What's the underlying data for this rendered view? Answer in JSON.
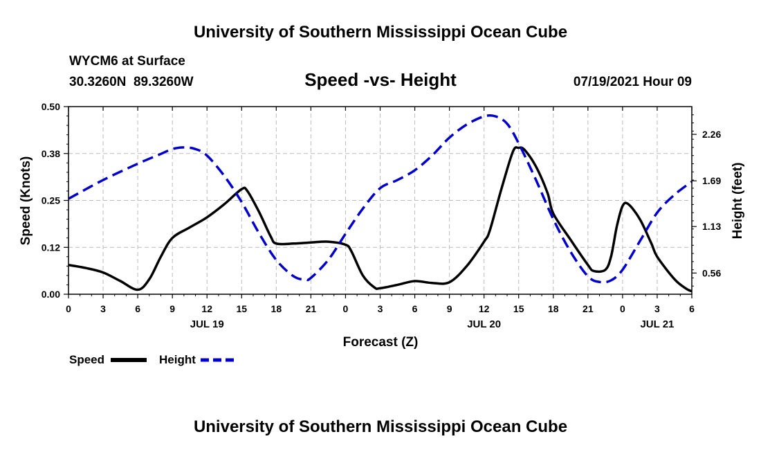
{
  "header": {
    "title": "University of Southern Mississippi Ocean Cube",
    "station": "WYCM6 at Surface",
    "coords": "30.3260N  89.3260W",
    "chart_title": "Speed -vs- Height",
    "datetime": "07/19/2021 Hour 09"
  },
  "footer": {
    "title": "University of Southern Mississippi Ocean Cube"
  },
  "colors": {
    "speed": "#000000",
    "height": "#0000cc",
    "grid": "#bbbbbb"
  },
  "chart_data": {
    "type": "line",
    "title": "Speed -vs- Height",
    "xlabel": "Forecast (Z)",
    "ylabel": "Speed (Knots)",
    "y2label": "Height (feet)",
    "xlim": [
      0,
      54
    ],
    "ylim": [
      0,
      0.5
    ],
    "y2lim": [
      0.3,
      2.6
    ],
    "x_ticks": [
      0,
      3,
      6,
      9,
      12,
      15,
      18,
      21,
      24,
      27,
      30,
      33,
      36,
      39,
      42,
      45,
      48,
      51,
      54
    ],
    "x_tick_labels": [
      "0",
      "3",
      "6",
      "9",
      "12",
      "15",
      "18",
      "21",
      "0",
      "3",
      "6",
      "9",
      "12",
      "15",
      "18",
      "21",
      "0",
      "3",
      "6"
    ],
    "y_ticks": [
      0.0,
      0.125,
      0.25,
      0.375,
      0.5
    ],
    "y_tick_labels": [
      "0.00",
      "0.12",
      "0.25",
      "0.38",
      "0.50"
    ],
    "y2_ticks": [
      0.56,
      1.13,
      1.69,
      2.26
    ],
    "y2_tick_labels": [
      "0.56",
      "1.13",
      "1.69",
      "2.26"
    ],
    "date_labels": [
      {
        "x": 12,
        "label": "JUL 19"
      },
      {
        "x": 36,
        "label": "JUL 20"
      },
      {
        "x": 51,
        "label": "JUL 21"
      }
    ],
    "grid": true,
    "legend": "bottom-left",
    "series": [
      {
        "name": "Speed",
        "axis": "left",
        "style": "solid",
        "x": [
          0,
          1.5,
          3,
          4.5,
          6,
          7,
          8,
          9,
          10.5,
          12,
          13.5,
          15,
          15.5,
          16.5,
          17.5,
          18,
          19.5,
          21,
          22.5,
          24,
          24.5,
          25.5,
          26.5,
          27,
          28.5,
          30,
          31.5,
          33,
          34.5,
          36,
          36.5,
          37.5,
          38.5,
          39,
          39.5,
          40.5,
          41.5,
          42,
          43.5,
          45,
          45.5,
          46.5,
          47,
          47.5,
          48,
          48.5,
          49.5,
          50.5,
          51,
          52.5,
          53.5,
          54
        ],
        "y": [
          0.078,
          0.07,
          0.058,
          0.035,
          0.012,
          0.04,
          0.1,
          0.15,
          0.178,
          0.205,
          0.24,
          0.28,
          0.275,
          0.22,
          0.155,
          0.135,
          0.135,
          0.138,
          0.14,
          0.132,
          0.115,
          0.05,
          0.018,
          0.016,
          0.025,
          0.035,
          0.03,
          0.032,
          0.075,
          0.14,
          0.17,
          0.28,
          0.38,
          0.39,
          0.385,
          0.34,
          0.27,
          0.215,
          0.145,
          0.078,
          0.062,
          0.065,
          0.1,
          0.18,
          0.235,
          0.24,
          0.2,
          0.135,
          0.1,
          0.04,
          0.015,
          0.008
        ]
      },
      {
        "name": "Height",
        "axis": "right",
        "style": "dashed",
        "x": [
          0,
          3,
          6,
          8,
          9,
          10,
          11,
          12,
          13.5,
          15,
          16.5,
          18,
          19.5,
          20.5,
          21,
          22.5,
          24,
          25.5,
          27,
          28.5,
          30,
          31.5,
          33,
          34.5,
          36,
          37,
          38,
          39,
          40.5,
          42,
          43.5,
          45,
          46,
          47,
          48,
          49.5,
          51,
          52.5,
          54
        ],
        "y": [
          1.47,
          1.7,
          1.9,
          2.02,
          2.08,
          2.1,
          2.08,
          2.0,
          1.75,
          1.43,
          1.05,
          0.72,
          0.52,
          0.48,
          0.5,
          0.72,
          1.04,
          1.35,
          1.6,
          1.7,
          1.82,
          2.0,
          2.22,
          2.38,
          2.48,
          2.48,
          2.39,
          2.15,
          1.7,
          1.22,
          0.82,
          0.52,
          0.45,
          0.47,
          0.6,
          0.95,
          1.3,
          1.52,
          1.68
        ]
      }
    ]
  }
}
